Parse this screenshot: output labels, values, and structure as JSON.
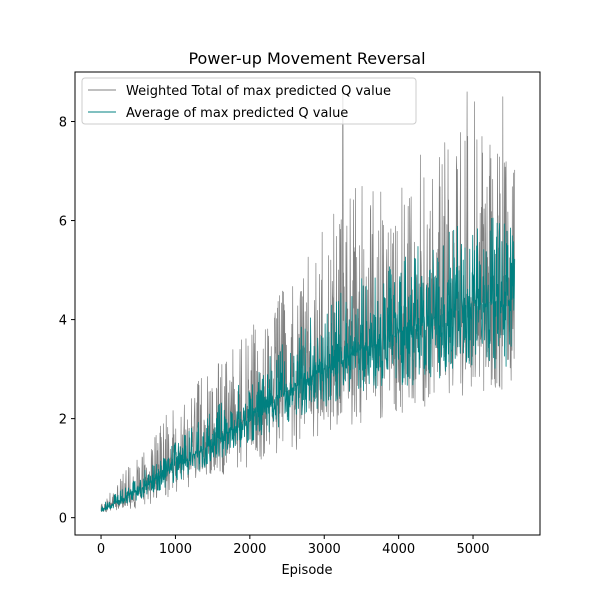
{
  "chart_data": {
    "type": "line",
    "title": "Power-up Movement Reversal",
    "xlabel": "Episode",
    "ylabel": "",
    "xlim": [
      -350,
      5900
    ],
    "ylim": [
      -0.35,
      9.0
    ],
    "x_ticks": [
      0,
      1000,
      2000,
      3000,
      4000,
      5000
    ],
    "x_tick_labels": [
      "0",
      "1000",
      "2000",
      "3000",
      "4000",
      "5000"
    ],
    "y_ticks": [
      0,
      2,
      4,
      6,
      8
    ],
    "y_tick_labels": [
      "0",
      "2",
      "4",
      "6",
      "8"
    ],
    "grid": false,
    "legend_position": "upper-left",
    "episode_range": [
      0,
      5560
    ],
    "series": [
      {
        "name": "Weighted Total of max predicted Q value",
        "color": "#808080",
        "summary": {
          "episodes": [
            0,
            500,
            1000,
            1500,
            2000,
            2500,
            3000,
            3500,
            4000,
            4500,
            5000,
            5560
          ],
          "trend": [
            0.15,
            0.55,
            1.05,
            1.5,
            2.05,
            2.55,
            3.0,
            3.4,
            3.75,
            4.05,
            4.3,
            4.4
          ],
          "upper": [
            0.3,
            1.3,
            2.4,
            3.0,
            3.8,
            4.8,
            6.0,
            6.8,
            7.1,
            7.6,
            7.9,
            7.2
          ],
          "lower": [
            0.1,
            0.2,
            0.45,
            0.8,
            1.0,
            1.3,
            1.6,
            1.9,
            2.0,
            2.3,
            2.5,
            2.6
          ],
          "peaks": [
            {
              "x": 3250,
              "y": 8.6
            },
            {
              "x": 4920,
              "y": 8.6
            },
            {
              "x": 5020,
              "y": 8.4
            },
            {
              "x": 5400,
              "y": 8.5
            }
          ]
        }
      },
      {
        "name": "Average of max predicted Q value",
        "color": "#008080",
        "summary": {
          "episodes": [
            0,
            500,
            1000,
            1500,
            2000,
            2500,
            3000,
            3500,
            4000,
            4500,
            5000,
            5560
          ],
          "trend": [
            0.15,
            0.55,
            1.05,
            1.5,
            2.05,
            2.55,
            3.0,
            3.4,
            3.75,
            4.05,
            4.3,
            4.4
          ],
          "upper": [
            0.25,
            0.85,
            1.55,
            2.2,
            2.9,
            3.6,
            4.3,
            5.0,
            5.4,
            5.8,
            6.2,
            6.0
          ],
          "lower": [
            0.12,
            0.35,
            0.7,
            1.1,
            1.5,
            1.9,
            2.2,
            2.5,
            2.6,
            2.8,
            2.9,
            3.0
          ]
        }
      }
    ]
  }
}
